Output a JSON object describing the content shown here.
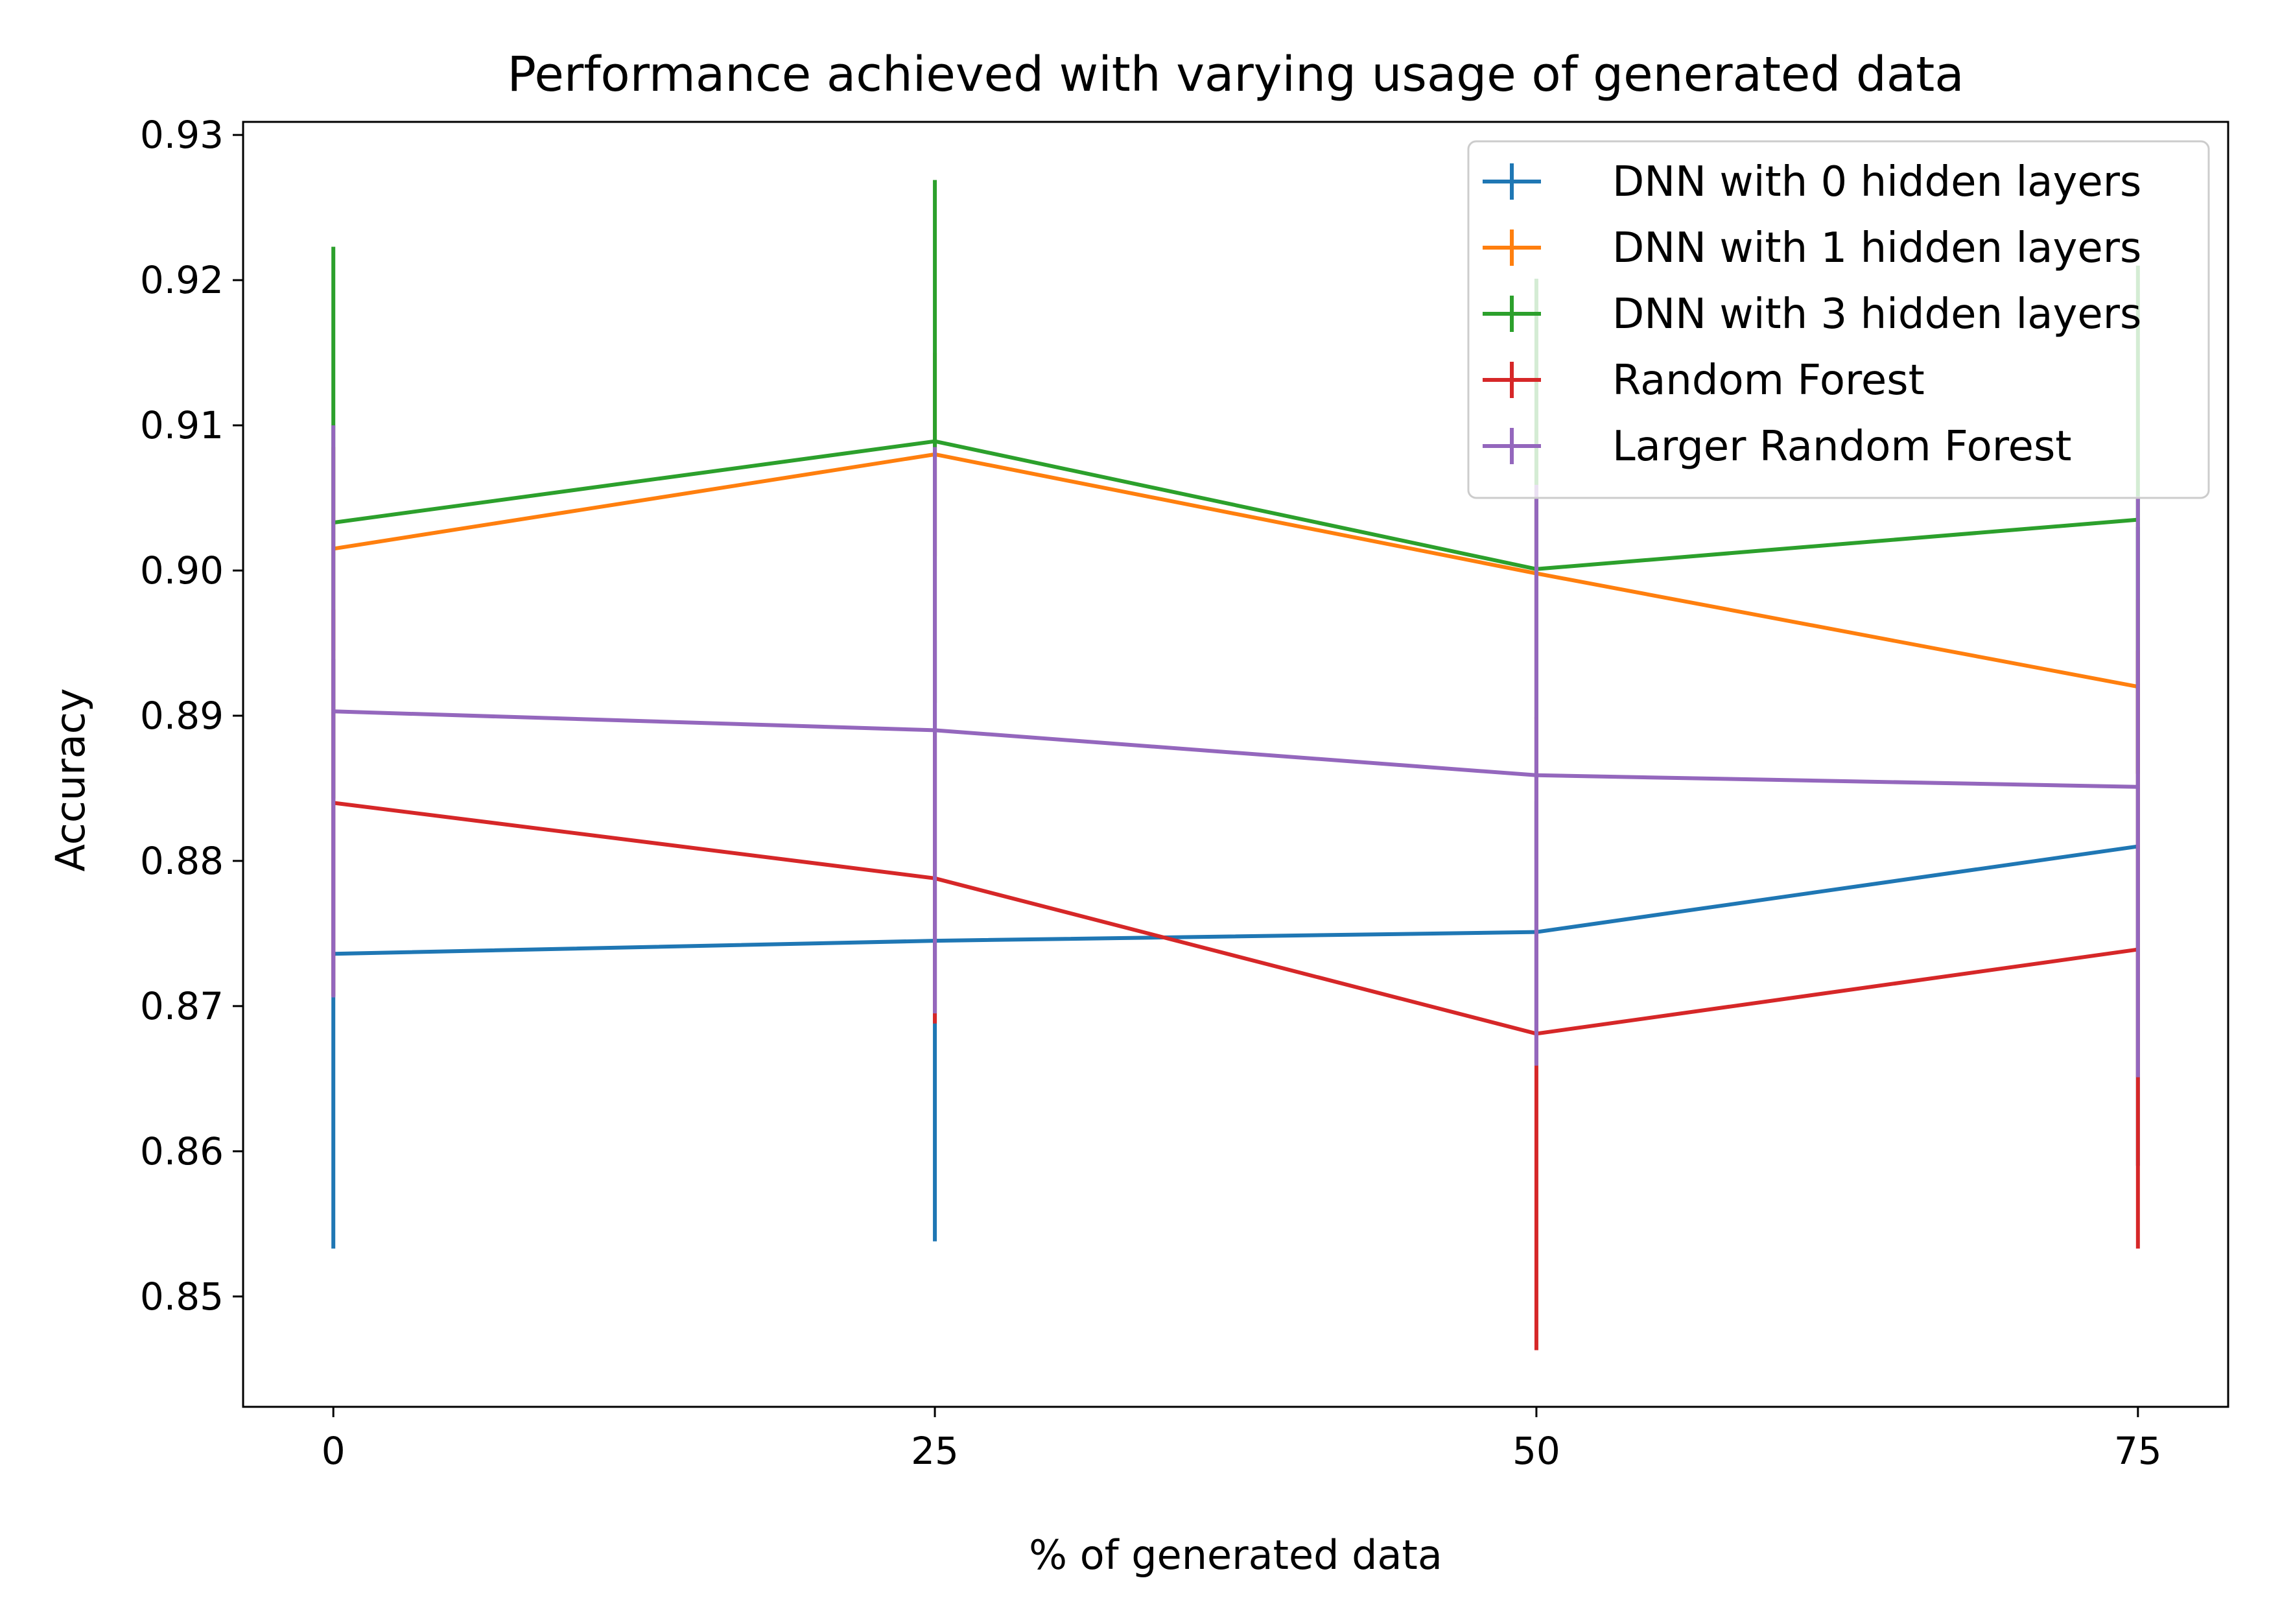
{
  "chart_data": {
    "type": "line",
    "title": "Performance achieved with varying usage of generated data",
    "xlabel": "% of generated data",
    "ylabel": "Accuracy",
    "x": [
      0,
      25,
      50,
      75
    ],
    "xticks": [
      0,
      25,
      50,
      75
    ],
    "xtick_labels": [
      "0",
      "25",
      "50",
      "75"
    ],
    "yticks": [
      0.85,
      0.86,
      0.87,
      0.88,
      0.89,
      0.9,
      0.91,
      0.92,
      0.93
    ],
    "ytick_labels": [
      "0.85",
      "0.86",
      "0.87",
      "0.88",
      "0.89",
      "0.90",
      "0.91",
      "0.92",
      "0.93"
    ],
    "xlim": [
      -3.75,
      78.75
    ],
    "ylim": [
      0.8424,
      0.9309
    ],
    "grid": false,
    "legend_position": "upper right",
    "error_bars": true,
    "series": [
      {
        "name": "DNN with 0 hidden layers",
        "color": "#1f77b4",
        "values": [
          0.8736,
          0.8745,
          0.8751,
          0.881
        ],
        "errors": [
          0.0203,
          0.0207,
          0.009,
          0.022
        ]
      },
      {
        "name": "DNN with 1 hidden layers",
        "color": "#ff7f0e",
        "values": [
          0.9015,
          0.908,
          0.8998,
          0.892
        ],
        "errors": [
          0.007,
          0.007,
          0.01,
          0.006
        ]
      },
      {
        "name": "DNN with 3 hidden layers",
        "color": "#2ca02c",
        "values": [
          0.9033,
          0.9089,
          0.9001,
          0.9035
        ],
        "errors": [
          0.019,
          0.018,
          0.02,
          0.0175
        ]
      },
      {
        "name": "Random Forest",
        "color": "#d62728",
        "values": [
          0.884,
          0.8788,
          0.8681,
          0.8739
        ],
        "errors": [
          0.0133,
          0.01,
          0.0218,
          0.0206
        ]
      },
      {
        "name": "Larger Random Forest",
        "color": "#9467bd",
        "values": [
          0.8903,
          0.889,
          0.8859,
          0.8851
        ],
        "errors": [
          0.0197,
          0.0195,
          0.02,
          0.02
        ]
      }
    ]
  }
}
